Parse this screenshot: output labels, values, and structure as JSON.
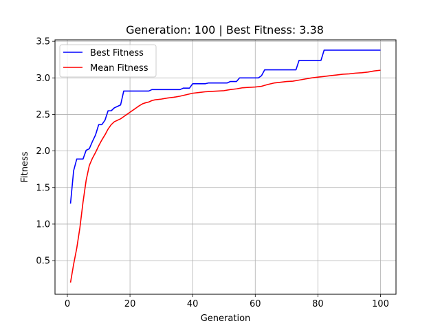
{
  "chart_data": {
    "type": "line",
    "title": "Generation: 100 | Best Fitness: 3.38",
    "xlabel": "Generation",
    "ylabel": "Fitness",
    "xlim": [
      -3.95,
      104.95
    ],
    "ylim": [
      0.04,
      3.52
    ],
    "xticks": [
      0,
      20,
      40,
      60,
      80,
      100
    ],
    "yticks": [
      0.5,
      1.0,
      1.5,
      2.0,
      2.5,
      3.0,
      3.5
    ],
    "xtick_labels": [
      "0",
      "20",
      "40",
      "60",
      "80",
      "100"
    ],
    "ytick_labels": [
      "0.5",
      "1.0",
      "1.5",
      "2.0",
      "2.5",
      "3.0",
      "3.5"
    ],
    "grid": true,
    "legend_position": "top-left",
    "series": [
      {
        "name": "Best Fitness",
        "color": "#0000ff",
        "points": [
          [
            1,
            1.28
          ],
          [
            2,
            1.73
          ],
          [
            3,
            1.89
          ],
          [
            4,
            1.89
          ],
          [
            5,
            1.89
          ],
          [
            6,
            2.01
          ],
          [
            7,
            2.03
          ],
          [
            8,
            2.13
          ],
          [
            9,
            2.22
          ],
          [
            10,
            2.36
          ],
          [
            11,
            2.36
          ],
          [
            12,
            2.42
          ],
          [
            13,
            2.55
          ],
          [
            14,
            2.55
          ],
          [
            15,
            2.59
          ],
          [
            16,
            2.61
          ],
          [
            17,
            2.63
          ],
          [
            18,
            2.82
          ],
          [
            26,
            2.82
          ],
          [
            27,
            2.84
          ],
          [
            36,
            2.84
          ],
          [
            37,
            2.86
          ],
          [
            39,
            2.86
          ],
          [
            40,
            2.92
          ],
          [
            44,
            2.92
          ],
          [
            45,
            2.93
          ],
          [
            51,
            2.93
          ],
          [
            52,
            2.95
          ],
          [
            54,
            2.95
          ],
          [
            55,
            3.0
          ],
          [
            61,
            3.0
          ],
          [
            62,
            3.03
          ],
          [
            63,
            3.11
          ],
          [
            73,
            3.11
          ],
          [
            74,
            3.24
          ],
          [
            81,
            3.24
          ],
          [
            82,
            3.38
          ],
          [
            100,
            3.38
          ]
        ]
      },
      {
        "name": "Mean Fitness",
        "color": "#ff0000",
        "points": [
          [
            1,
            0.2
          ],
          [
            2,
            0.45
          ],
          [
            3,
            0.67
          ],
          [
            4,
            0.95
          ],
          [
            5,
            1.3
          ],
          [
            6,
            1.6
          ],
          [
            7,
            1.8
          ],
          [
            8,
            1.9
          ],
          [
            9,
            1.98
          ],
          [
            10,
            2.07
          ],
          [
            11,
            2.15
          ],
          [
            12,
            2.22
          ],
          [
            13,
            2.3
          ],
          [
            14,
            2.36
          ],
          [
            15,
            2.4
          ],
          [
            16,
            2.42
          ],
          [
            17,
            2.44
          ],
          [
            18,
            2.47
          ],
          [
            19,
            2.5
          ],
          [
            20,
            2.53
          ],
          [
            21,
            2.56
          ],
          [
            22,
            2.59
          ],
          [
            23,
            2.62
          ],
          [
            24,
            2.645
          ],
          [
            25,
            2.66
          ],
          [
            26,
            2.67
          ],
          [
            27,
            2.69
          ],
          [
            28,
            2.7
          ],
          [
            30,
            2.71
          ],
          [
            32,
            2.725
          ],
          [
            34,
            2.735
          ],
          [
            36,
            2.75
          ],
          [
            38,
            2.77
          ],
          [
            40,
            2.79
          ],
          [
            42,
            2.8
          ],
          [
            44,
            2.81
          ],
          [
            46,
            2.815
          ],
          [
            48,
            2.82
          ],
          [
            50,
            2.825
          ],
          [
            52,
            2.84
          ],
          [
            54,
            2.85
          ],
          [
            56,
            2.865
          ],
          [
            58,
            2.87
          ],
          [
            60,
            2.875
          ],
          [
            62,
            2.885
          ],
          [
            64,
            2.91
          ],
          [
            66,
            2.93
          ],
          [
            68,
            2.94
          ],
          [
            70,
            2.95
          ],
          [
            72,
            2.955
          ],
          [
            74,
            2.97
          ],
          [
            76,
            2.985
          ],
          [
            78,
            3.0
          ],
          [
            80,
            3.01
          ],
          [
            82,
            3.02
          ],
          [
            84,
            3.03
          ],
          [
            86,
            3.04
          ],
          [
            88,
            3.05
          ],
          [
            90,
            3.055
          ],
          [
            92,
            3.065
          ],
          [
            94,
            3.07
          ],
          [
            96,
            3.08
          ],
          [
            98,
            3.095
          ],
          [
            100,
            3.105
          ]
        ]
      }
    ]
  }
}
